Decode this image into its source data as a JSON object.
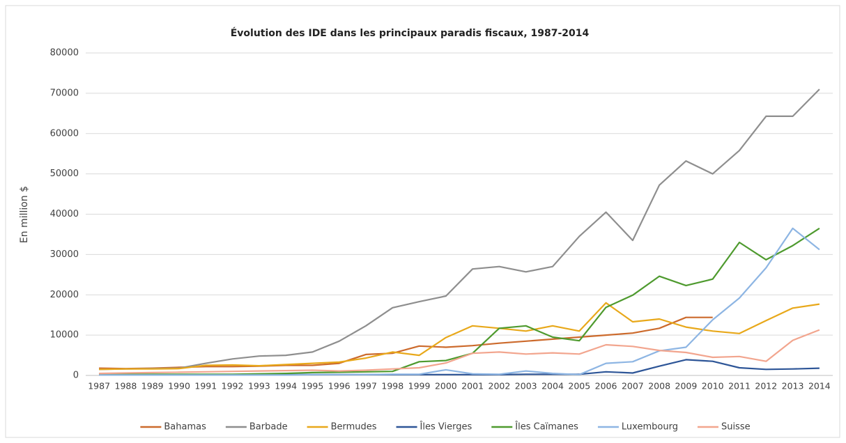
{
  "chart_data": {
    "type": "line",
    "title": "Évolution des IDE dans les principaux paradis fiscaux, 1987-2014",
    "y_label": "En million $",
    "categories": [
      "1987",
      "1988",
      "1989",
      "1990",
      "1991",
      "1992",
      "1993",
      "1994",
      "1995",
      "1996",
      "1997",
      "1998",
      "1999",
      "2000",
      "2001",
      "2002",
      "2003",
      "2004",
      "2005",
      "2006",
      "2007",
      "2008",
      "2009",
      "2010",
      "2011",
      "2012",
      "2013",
      "2014"
    ],
    "ylim": [
      0,
      80000
    ],
    "yticks": [
      0,
      10000,
      20000,
      30000,
      40000,
      50000,
      60000,
      70000,
      80000
    ],
    "grid": true,
    "legend": "bottom",
    "series": [
      {
        "name": "Bahamas",
        "color": "#cc6a2c",
        "values": [
          1800,
          1700,
          1800,
          2000,
          2200,
          2200,
          2300,
          2500,
          2500,
          3000,
          5200,
          5500,
          7300,
          7000,
          7400,
          8000,
          8500,
          9000,
          9500,
          10000,
          10500,
          11700,
          14400,
          14400,
          null,
          null,
          null,
          null
        ]
      },
      {
        "name": "Barbade",
        "color": "#8e8e8e",
        "values": [
          1500,
          1600,
          1700,
          1800,
          3000,
          4100,
          4800,
          5000,
          5800,
          8500,
          12300,
          16800,
          18300,
          19700,
          26400,
          27000,
          25700,
          27000,
          34500,
          40500,
          33500,
          47200,
          53200,
          50000,
          55800,
          64300,
          64300,
          71000
        ]
      },
      {
        "name": "Bermudes",
        "color": "#e8a81a",
        "values": [
          1500,
          1600,
          1600,
          1700,
          2500,
          2600,
          2400,
          2700,
          3000,
          3300,
          4300,
          5800,
          5000,
          9400,
          12300,
          11700,
          11000,
          12300,
          11000,
          18000,
          13300,
          14000,
          12000,
          11000,
          10400,
          13600,
          16700,
          17700
        ]
      },
      {
        "name": "Îles Vierges",
        "color": "#2d5597",
        "values": [
          200,
          200,
          200,
          200,
          200,
          200,
          200,
          200,
          200,
          200,
          200,
          200,
          200,
          200,
          200,
          200,
          300,
          300,
          300,
          900,
          600,
          2300,
          3900,
          3500,
          1900,
          1500,
          1600,
          1800
        ]
      },
      {
        "name": "Îles Caïmanes",
        "color": "#4e9a2e",
        "values": [
          300,
          300,
          300,
          300,
          300,
          300,
          400,
          500,
          700,
          800,
          900,
          1000,
          3400,
          3700,
          5500,
          11700,
          12300,
          9500,
          8600,
          16900,
          19900,
          24600,
          22300,
          23900,
          33000,
          28700,
          32200,
          36500
        ]
      },
      {
        "name": "Luxembourg",
        "color": "#8db5e3",
        "values": [
          100,
          100,
          100,
          100,
          100,
          100,
          100,
          100,
          200,
          200,
          200,
          300,
          300,
          1400,
          400,
          300,
          1100,
          500,
          200,
          3000,
          3400,
          6100,
          7000,
          13800,
          19200,
          26700,
          36500,
          31200
        ]
      },
      {
        "name": "Suisse",
        "color": "#f2a58e",
        "values": [
          500,
          600,
          700,
          800,
          900,
          1000,
          1100,
          1200,
          1300,
          1100,
          1300,
          1600,
          1900,
          3100,
          5500,
          5800,
          5300,
          5600,
          5300,
          7600,
          7200,
          6200,
          5700,
          4500,
          4700,
          3500,
          8700,
          11300
        ]
      }
    ]
  }
}
